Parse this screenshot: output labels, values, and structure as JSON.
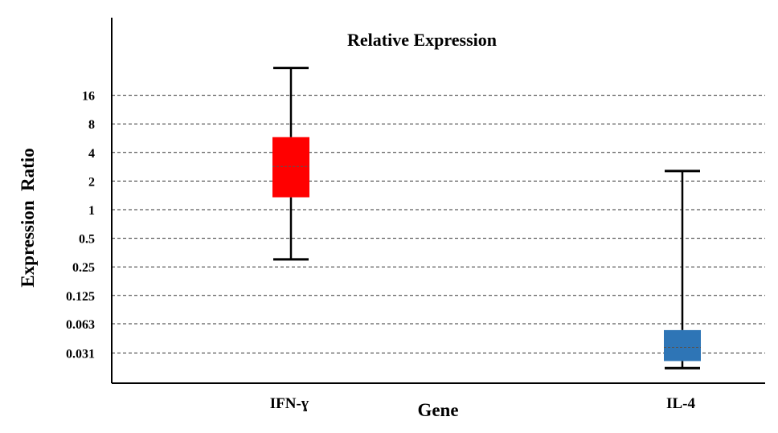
{
  "chart_data": {
    "type": "boxplot",
    "title": "Relative Expression",
    "xlabel": "Gene",
    "ylabel": "Expression  Ratio",
    "yscale": "log2",
    "ylim": [
      0.017,
      60
    ],
    "yticks": [
      0.031,
      0.063,
      0.125,
      0.25,
      0.5,
      1,
      2,
      4,
      8,
      16
    ],
    "ytick_labels": [
      "0.031",
      "0.063",
      "0.125",
      "0.25",
      "0.5",
      "1",
      "2",
      "4",
      "8",
      "16"
    ],
    "grid": true,
    "categories": [
      "IFN-ɣ",
      "IL-4"
    ],
    "boxes": [
      {
        "category": "IFN-ɣ",
        "whisker_low": 0.3,
        "q1": 1.35,
        "median": 2.85,
        "q3": 5.8,
        "whisker_high": 31,
        "color": "#ff0000"
      },
      {
        "category": "IL-4",
        "whisker_low": 0.0215,
        "q1": 0.0255,
        "median": 0.0355,
        "q3": 0.054,
        "whisker_high": 2.55,
        "color": "#2e75b6"
      }
    ]
  }
}
